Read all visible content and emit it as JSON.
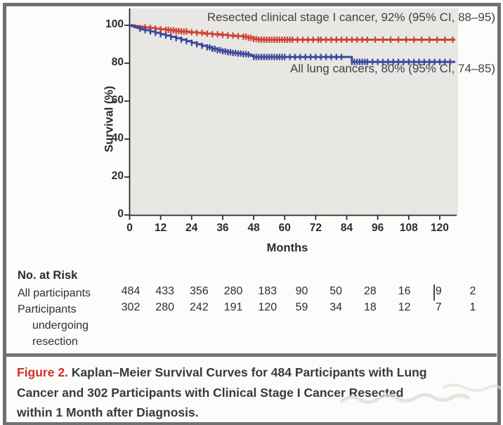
{
  "chart_data": {
    "type": "line",
    "subtype": "kaplan-meier-step",
    "title": "",
    "xlabel": "Months",
    "ylabel": "Survival (%)",
    "xlim": [
      0,
      126
    ],
    "ylim": [
      0,
      100
    ],
    "xticks": [
      0,
      12,
      24,
      36,
      48,
      60,
      72,
      84,
      96,
      108,
      120
    ],
    "yticks": [
      0,
      20,
      40,
      60,
      80,
      100
    ],
    "grid": false,
    "legend_position": "annotations-in-plot",
    "plot_background": "#e8e7e4",
    "series": [
      {
        "name": "Resected clinical stage I cancer",
        "annotation": "Resected clinical stage I cancer, 92% (95% CI, 88–95)",
        "survival_pct": 92,
        "ci_95": [
          88,
          95
        ],
        "color": "#cf4335",
        "step_points": [
          [
            0,
            100
          ],
          [
            2,
            99.6
          ],
          [
            4,
            99.2
          ],
          [
            6,
            98.9
          ],
          [
            8,
            98.6
          ],
          [
            10,
            98.2
          ],
          [
            12,
            97.9
          ],
          [
            14,
            97.6
          ],
          [
            16,
            97.3
          ],
          [
            18,
            97.0
          ],
          [
            20,
            96.7
          ],
          [
            23,
            96.3
          ],
          [
            26,
            96.0
          ],
          [
            29,
            95.6
          ],
          [
            32,
            95.3
          ],
          [
            35,
            95.0
          ],
          [
            38,
            94.6
          ],
          [
            41,
            94.3
          ],
          [
            44,
            94.0
          ],
          [
            46,
            93.4
          ],
          [
            48,
            92.8
          ],
          [
            50,
            92.4
          ],
          [
            126,
            92.4
          ]
        ],
        "censor_months": [
          6,
          8,
          10,
          12,
          14,
          15,
          16,
          17,
          18,
          19,
          20,
          21,
          22,
          24,
          26,
          28,
          30,
          32,
          34,
          36,
          38,
          40,
          42,
          44,
          45,
          46,
          47,
          48,
          49,
          50,
          51,
          52,
          53,
          54,
          55,
          56,
          57,
          58,
          59,
          60,
          61,
          62,
          63,
          65,
          67,
          69,
          71,
          73,
          74,
          76,
          78,
          80,
          82,
          84,
          86,
          88,
          90,
          92,
          95,
          98,
          101,
          104,
          107,
          110,
          113,
          116,
          119,
          122,
          125
        ]
      },
      {
        "name": "All lung cancers",
        "annotation": "All lung cancers, 80% (95% CI, 74–85)",
        "survival_pct": 80,
        "ci_95": [
          74,
          85
        ],
        "color": "#3b489c",
        "step_points": [
          [
            0,
            100
          ],
          [
            1,
            99.5
          ],
          [
            2,
            99.0
          ],
          [
            3,
            98.6
          ],
          [
            4,
            98.2
          ],
          [
            5,
            97.8
          ],
          [
            6,
            97.4
          ],
          [
            8,
            96.7
          ],
          [
            10,
            96.0
          ],
          [
            12,
            95.3
          ],
          [
            14,
            94.6
          ],
          [
            16,
            93.9
          ],
          [
            18,
            93.2
          ],
          [
            20,
            92.4
          ],
          [
            22,
            91.6
          ],
          [
            24,
            90.8
          ],
          [
            26,
            90.0
          ],
          [
            28,
            89.2
          ],
          [
            30,
            88.4
          ],
          [
            32,
            87.6
          ],
          [
            34,
            86.9
          ],
          [
            36,
            86.3
          ],
          [
            38,
            85.8
          ],
          [
            40,
            85.4
          ],
          [
            42,
            85.1
          ],
          [
            44,
            84.8
          ],
          [
            46,
            84.6
          ],
          [
            47,
            83.9
          ],
          [
            48,
            83.3
          ],
          [
            84,
            83.3
          ],
          [
            86,
            80.7
          ],
          [
            126,
            80.7
          ]
        ],
        "censor_months": [
          4,
          6,
          8,
          10,
          12,
          14,
          16,
          18,
          20,
          22,
          24,
          26,
          28,
          30,
          31,
          32,
          33,
          34,
          35,
          36,
          37,
          38,
          39,
          40,
          41,
          42,
          43,
          44,
          45,
          46,
          48,
          49,
          50,
          51,
          52,
          53,
          54,
          55,
          56,
          57,
          58,
          59,
          60,
          62,
          64,
          66,
          68,
          70,
          72,
          74,
          76,
          78,
          80,
          82,
          86,
          87,
          88,
          89,
          90,
          91,
          92,
          94,
          96,
          98,
          100,
          102,
          104,
          106,
          108,
          110,
          112,
          114,
          116,
          118,
          120,
          122,
          124
        ]
      }
    ],
    "at_risk": {
      "title": "No. at Risk",
      "time_points": [
        0,
        12,
        24,
        36,
        48,
        60,
        72,
        84,
        96,
        108,
        120
      ],
      "groups": [
        {
          "label": "All participants",
          "counts": [
            484,
            433,
            356,
            280,
            183,
            90,
            50,
            28,
            16,
            9,
            2
          ]
        },
        {
          "label": "Participants undergoing resection",
          "counts": [
            302,
            280,
            242,
            191,
            120,
            59,
            34,
            18,
            12,
            7,
            1
          ]
        }
      ]
    }
  },
  "caption": {
    "prefix": "Figure 2.",
    "lines": [
      "Kaplan–Meier Survival Curves for 484 Participants with Lung",
      "Cancer and 302 Participants with Clinical Stage I Cancer Resected",
      "within 1 Month after Diagnosis."
    ]
  },
  "colors": {
    "resected_curve": "#cf4335",
    "all_cancers_curve": "#3b489c",
    "figure_label_red": "#ce3126",
    "frame_gray": "#707070",
    "plot_background": "#e8e7e4"
  }
}
